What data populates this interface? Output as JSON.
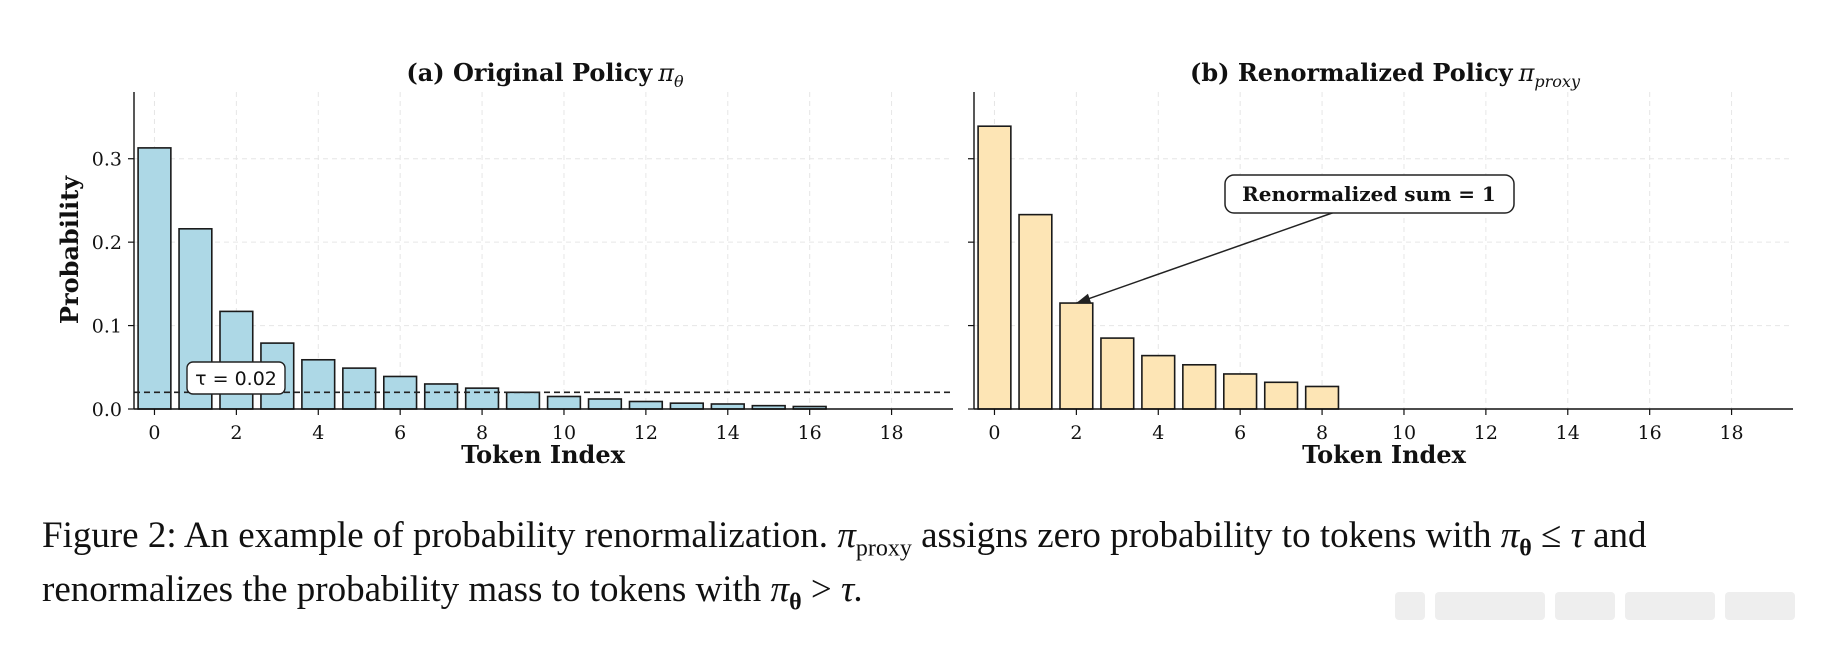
{
  "chart_data": [
    {
      "type": "bar",
      "title": "(a) Original Policy π_θ",
      "title_main": "(a) Original Policy",
      "title_symbol": "π",
      "title_sub": "θ",
      "xlabel": "Token Index",
      "ylabel": "Probability",
      "categories": [
        0,
        1,
        2,
        3,
        4,
        5,
        6,
        7,
        8,
        9,
        10,
        11,
        12,
        13,
        14,
        15,
        16,
        17,
        18,
        19
      ],
      "values": [
        0.313,
        0.216,
        0.117,
        0.079,
        0.059,
        0.049,
        0.039,
        0.03,
        0.025,
        0.02,
        0.015,
        0.012,
        0.009,
        0.007,
        0.006,
        0.004,
        0.003,
        0.0,
        0.0,
        0.0
      ],
      "xticks": [
        "0",
        "2",
        "4",
        "6",
        "8",
        "10",
        "12",
        "14",
        "16",
        "18"
      ],
      "yticks": [
        "0.0",
        "0.1",
        "0.2",
        "0.3"
      ],
      "xlim": [
        -0.5,
        19.5
      ],
      "ylim": [
        0,
        0.38
      ],
      "threshold": 0.02,
      "threshold_label": "τ = 0.02",
      "bar_color": "#add8e6",
      "grid": true
    },
    {
      "type": "bar",
      "title": "(b) Renormalized Policy π_proxy",
      "title_main": "(b) Renormalized Policy",
      "title_symbol": "π",
      "title_sub": "proxy",
      "xlabel": "Token Index",
      "ylabel": "",
      "categories": [
        0,
        1,
        2,
        3,
        4,
        5,
        6,
        7,
        8,
        9,
        10,
        11,
        12,
        13,
        14,
        15,
        16,
        17,
        18,
        19
      ],
      "values": [
        0.339,
        0.233,
        0.127,
        0.085,
        0.064,
        0.053,
        0.042,
        0.032,
        0.027,
        0,
        0,
        0,
        0,
        0,
        0,
        0,
        0,
        0,
        0,
        0
      ],
      "xticks": [
        "0",
        "2",
        "4",
        "6",
        "8",
        "10",
        "12",
        "14",
        "16",
        "18"
      ],
      "yticks": [],
      "xlim": [
        -0.5,
        19.5
      ],
      "ylim": [
        0,
        0.38
      ],
      "annotation": {
        "text": "Renormalized sum = 1",
        "target_index": 2
      },
      "bar_color": "#fde5b5",
      "grid": true
    }
  ],
  "caption": {
    "prefix": "Figure 2: An example of probability renormalization.",
    "pi": "π",
    "proxy_sub": "proxy",
    "mid1": "assigns zero probability to tokens with",
    "theta": "θ",
    "leq": "≤",
    "tau": "τ",
    "and": "and",
    "line2": "renormalizes the probability mass to tokens with",
    "gt": ">",
    "end": "τ."
  },
  "colors": {
    "bar_edge": "#1a1a1a",
    "grid": "#e6e6e6",
    "text": "#111111"
  }
}
